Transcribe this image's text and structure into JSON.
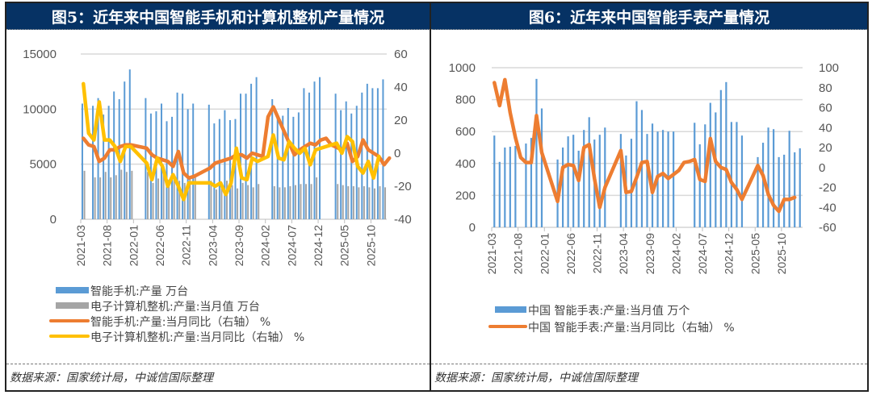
{
  "colors": {
    "title_bg": "#063264",
    "bar_blue": "#5B9BD5",
    "bar_gray": "#A5A5A5",
    "line_orange": "#ED7D31",
    "line_yellow": "#FFC000",
    "grid": "#D9D9D9"
  },
  "source_text": "数据来源：国家统计局，中诚信国际整理",
  "chart_data": [
    {
      "type": "bar+line",
      "title": "图5：近年来中国智能手机和计算机整机产量情况",
      "ylim_left": [
        0,
        15000
      ],
      "ylim_right": [
        -40,
        60
      ],
      "yticks_left": [
        "0",
        "5000",
        "10000",
        "15000"
      ],
      "yticks_right": [
        "-40",
        "-20",
        "0",
        "20",
        "40",
        "60"
      ],
      "xtick_labels": [
        "2021-03",
        "2021-08",
        "2022-01",
        "2022-06",
        "2022-11",
        "2023-04",
        "2023-09",
        "2024-02",
        "2024-07",
        "2024-12",
        "2025-05",
        "2025-10"
      ],
      "x_start": "2021-03",
      "legend": [
        "智能手机:产量 万台",
        "电子计算机整机:产量:当月值 万台",
        "智能手机:产量:当月同比（右轴） %",
        "电子计算机整机:产量:当月同比（右轴） %"
      ],
      "series": [
        {
          "name": "智能手机:产量 万台",
          "kind": "bar",
          "axis": "left",
          "values": [
            10500,
            null,
            10300,
            11000,
            9500,
            10300,
            11600,
            10900,
            12500,
            13600,
            null,
            null,
            11000,
            9600,
            9800,
            10500,
            8900,
            9300,
            11500,
            11400,
            10000,
            10500,
            null,
            null,
            10400,
            8700,
            9100,
            9900,
            9000,
            9100,
            11400,
            11400,
            12300,
            12900,
            null,
            null,
            10900,
            9300,
            9400,
            10100,
            9300,
            9700,
            11900,
            11500,
            12500,
            12900,
            null,
            null,
            11400,
            9900,
            10700,
            9600,
            10300,
            11500,
            12300,
            11900,
            11900,
            12700
          ]
        },
        {
          "name": "电子计算机整机:产量:当月值 万台",
          "kind": "bar",
          "axis": "left",
          "values": [
            4400,
            null,
            3800,
            3800,
            4300,
            3800,
            4000,
            4500,
            4300,
            4400,
            null,
            null,
            4300,
            3300,
            3700,
            4300,
            3600,
            3600,
            3500,
            3300,
            3800,
            3800,
            null,
            null,
            3500,
            2700,
            2900,
            3500,
            3100,
            2800,
            3300,
            3100,
            2900,
            3200,
            null,
            null,
            3000,
            2900,
            2900,
            3000,
            3100,
            3200,
            3200,
            3200,
            3800,
            null,
            null,
            null,
            3200,
            3100,
            3000,
            3000,
            2900,
            3000,
            2900,
            2800,
            3000,
            2900
          ]
        },
        {
          "name": "智能手机:产量:当月同比（右轴） %",
          "kind": "line",
          "axis": "right",
          "values": [
            9,
            5,
            4,
            -5,
            -3,
            2,
            2,
            4,
            5,
            5,
            null,
            null,
            3,
            -1,
            -3,
            -4,
            -5,
            -8,
            1,
            -12,
            -15,
            -14,
            null,
            null,
            -9,
            -6,
            -5,
            -4,
            -3,
            -1,
            -1,
            -3,
            0,
            -1,
            -2,
            22,
            28,
            null,
            null,
            null,
            -1,
            2,
            4,
            6,
            5,
            8,
            9,
            5,
            null,
            2,
            6,
            -5,
            -2,
            8,
            2,
            0,
            -2,
            -7,
            -3
          ]
        },
        {
          "name": "电子计算机整机:产量:当月同比（右轴） %",
          "kind": "line",
          "axis": "right",
          "values": [
            42,
            12,
            8,
            31,
            8,
            8,
            4,
            -5,
            4,
            4,
            null,
            null,
            -6,
            -16,
            -3,
            -8,
            -20,
            -13,
            -20,
            -28,
            -18,
            -18,
            null,
            null,
            -18,
            -20,
            -18,
            -25,
            -18,
            3,
            -15,
            -16,
            -3,
            -5,
            null,
            -2,
            11,
            -3,
            -4,
            7,
            3,
            0,
            3,
            -7,
            2,
            null,
            null,
            null,
            6,
            0,
            10,
            7,
            -8,
            -12,
            -5,
            -15,
            -2
          ]
        }
      ]
    },
    {
      "type": "bar+line",
      "title": "图6：近年来中国智能手表产量情况",
      "ylim_left": [
        0,
        1000
      ],
      "ylim_right": [
        -60,
        100
      ],
      "yticks_left": [
        "0",
        "200",
        "400",
        "600",
        "800",
        "1000"
      ],
      "yticks_right": [
        "-60",
        "-40",
        "-20",
        "0",
        "20",
        "40",
        "60",
        "80",
        "100"
      ],
      "xtick_labels": [
        "2021-03",
        "2021-08",
        "2022-01",
        "2022-06",
        "2022-11",
        "2023-04",
        "2023-09",
        "2024-02",
        "2024-07",
        "2024-12",
        "2025-05",
        "2025-10"
      ],
      "x_start": "2021-03",
      "legend": [
        "中国 智能手表:产量:当月值 万个",
        "中国 智能手表:产量:当月同比（右轴） %"
      ],
      "series": [
        {
          "name": "中国 智能手表:产量:当月值 万个",
          "kind": "bar",
          "axis": "left",
          "values": [
            575,
            410,
            500,
            505,
            510,
            null,
            525,
            560,
            930,
            745,
            null,
            null,
            425,
            500,
            570,
            580,
            480,
            610,
            690,
            550,
            580,
            625,
            null,
            null,
            585,
            450,
            555,
            790,
            735,
            585,
            650,
            600,
            610,
            600,
            600,
            null,
            null,
            null,
            655,
            520,
            645,
            780,
            720,
            860,
            910,
            660,
            660,
            575,
            null,
            null,
            440,
            530,
            625,
            615,
            440,
            455,
            605,
            470,
            495
          ]
        },
        {
          "name": "中国 智能手表:产量:当月同比（右轴） %",
          "kind": "line",
          "axis": "right",
          "values": [
            85,
            62,
            88,
            55,
            30,
            10,
            5,
            5,
            52,
            15,
            null,
            null,
            -34,
            0,
            3,
            2,
            -13,
            20,
            23,
            -11,
            -40,
            -20,
            null,
            null,
            17,
            -25,
            -24,
            -10,
            5,
            6,
            -25,
            -9,
            -6,
            -11,
            -7,
            -3,
            5,
            6,
            8,
            -12,
            -14,
            29,
            6,
            0,
            -2,
            -15,
            -22,
            -32,
            null,
            null,
            2,
            -8,
            -27,
            -38,
            -44,
            -32,
            -32,
            -30
          ]
        }
      ]
    }
  ]
}
